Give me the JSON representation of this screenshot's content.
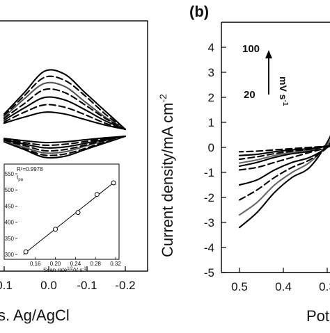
{
  "panel_a": {
    "x_tick_labels": [
      "0.1",
      "0.0",
      "-0.1",
      "-0.2"
    ],
    "x_axis_label_visible": "s. Ag/AgCl",
    "curves": [
      {
        "color": "#000000",
        "style": "solid",
        "peak": 0.95
      },
      {
        "color": "#000000",
        "style": "dashed",
        "peak": 0.85
      },
      {
        "color": "#555555",
        "style": "solid",
        "peak": 0.75
      },
      {
        "color": "#000000",
        "style": "dashed",
        "peak": 0.65
      },
      {
        "color": "#000000",
        "style": "solid",
        "peak": 0.52
      },
      {
        "color": "#000000",
        "style": "dashed",
        "peak": 0.4
      },
      {
        "color": "#000000",
        "style": "solid",
        "peak": 0.28
      }
    ],
    "inset": {
      "r_squared": "R²=0.9978",
      "ylabel": "I",
      "ylabel_sub": "pa",
      "xlabel": "Scan rate",
      "xlabel_sup": "1/2",
      "xlabel_rest": "/V s",
      "xlabel_sup2": "-1",
      "y_ticks": [
        "550",
        "500",
        "450",
        "400",
        "350",
        "300"
      ],
      "x_ticks": [
        "0.16",
        "0.20",
        "0.24",
        "0.28",
        "0.32"
      ]
    }
  },
  "panel_b": {
    "label": "(b)",
    "ylabel": "Current density/mA cm",
    "ylabel_sup": "-2",
    "xlabel_visible": "Poter",
    "y_tick_labels": [
      "4",
      "3",
      "2",
      "1",
      "0",
      "-1",
      "-2",
      "-3",
      "-4",
      "-5"
    ],
    "x_tick_labels": [
      "0.5",
      "0.4",
      "0.3"
    ],
    "scan_rate_high": "100",
    "scan_rate_low": "20",
    "scan_rate_unit": "mV s",
    "scan_rate_unit_sup": "-1"
  },
  "chart_data": [
    {
      "type": "line",
      "title": "",
      "xlabel": "Potential vs. Ag/AgCl",
      "ylabel": "",
      "x_reversed": true,
      "xlim": [
        0.1,
        -0.2
      ],
      "series": [
        {
          "x": [
            0.1,
            0.05,
            0.0,
            -0.05,
            -0.1,
            -0.15,
            -0.2
          ],
          "values": [
            0.25,
            0.6,
            0.95,
            0.9,
            0.6,
            0.3,
            0.0
          ]
        },
        {
          "x": [
            0.1,
            0.05,
            0.0,
            -0.05,
            -0.1,
            -0.15,
            -0.2
          ],
          "values": [
            0.22,
            0.55,
            0.85,
            0.8,
            0.55,
            0.25,
            0.0
          ]
        },
        {
          "x": [
            0.1,
            0.05,
            0.0,
            -0.05,
            -0.1,
            -0.15,
            -0.2
          ],
          "values": [
            0.2,
            0.5,
            0.75,
            0.7,
            0.45,
            0.2,
            0.0
          ]
        },
        {
          "x": [
            0.1,
            0.05,
            0.0,
            -0.05,
            -0.1,
            -0.15,
            -0.2
          ],
          "values": [
            0.18,
            0.42,
            0.65,
            0.6,
            0.4,
            0.18,
            0.0
          ]
        },
        {
          "x": [
            0.1,
            0.05,
            0.0,
            -0.05,
            -0.1,
            -0.15,
            -0.2
          ],
          "values": [
            0.15,
            0.35,
            0.52,
            0.48,
            0.32,
            0.14,
            0.0
          ]
        },
        {
          "x": [
            0.1,
            0.05,
            0.0,
            -0.05,
            -0.1,
            -0.15,
            -0.2
          ],
          "values": [
            0.12,
            0.28,
            0.4,
            0.36,
            0.24,
            0.1,
            0.0
          ]
        },
        {
          "x": [
            0.1,
            0.05,
            0.0,
            -0.05,
            -0.1,
            -0.15,
            -0.2
          ],
          "values": [
            0.1,
            0.2,
            0.28,
            0.25,
            0.16,
            0.07,
            0.0
          ]
        }
      ]
    },
    {
      "type": "scatter",
      "title": "",
      "xlabel": "Scan rate^1/2 /V s^-1",
      "ylabel": "I_pa",
      "xlim": [
        0.12,
        0.32
      ],
      "ylim": [
        300,
        550
      ],
      "x": [
        0.141,
        0.2,
        0.245,
        0.283,
        0.316
      ],
      "values": [
        308,
        378,
        430,
        486,
        522
      ],
      "fit": {
        "r_squared": 0.9978
      }
    },
    {
      "type": "line",
      "title": "",
      "xlabel": "Potential",
      "ylabel": "Current density/mA cm^-2",
      "x_reversed": true,
      "xlim": [
        0.55,
        0.25
      ],
      "ylim": [
        -5,
        4
      ],
      "series": [
        {
          "x": [
            0.5,
            0.46,
            0.42,
            0.38,
            0.34,
            0.3,
            0.27
          ],
          "values": [
            -3.2,
            -2.6,
            -1.8,
            -1.2,
            -0.8,
            0.2,
            1.4
          ]
        },
        {
          "x": [
            0.5,
            0.46,
            0.42,
            0.38,
            0.34,
            0.3,
            0.27
          ],
          "values": [
            -2.7,
            -2.2,
            -1.5,
            -1.0,
            -0.6,
            0.1,
            1.0
          ]
        },
        {
          "x": [
            0.5,
            0.46,
            0.42,
            0.38,
            0.34,
            0.3,
            0.27
          ],
          "values": [
            -2.1,
            -1.7,
            -1.2,
            -0.8,
            -0.5,
            0.0,
            0.7
          ]
        },
        {
          "x": [
            0.5,
            0.46,
            0.42,
            0.38,
            0.34,
            0.3,
            0.27
          ],
          "values": [
            -1.5,
            -1.3,
            -0.9,
            -0.6,
            -0.4,
            0.0,
            0.5
          ]
        },
        {
          "x": [
            0.5,
            0.46,
            0.42,
            0.38,
            0.34,
            0.3,
            0.27
          ],
          "values": [
            -0.9,
            -0.8,
            -0.6,
            -0.4,
            -0.2,
            0.0,
            0.3
          ]
        }
      ]
    }
  ]
}
